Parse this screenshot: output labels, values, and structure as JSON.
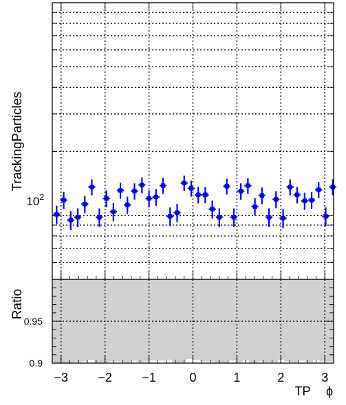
{
  "chart_data": [
    {
      "type": "scatter",
      "panel": "top",
      "ylabel": "TrackingParticles",
      "yscale": "log",
      "ylim": [
        50,
        1000
      ],
      "xlim": [
        -3.2,
        3.2
      ],
      "grid": true,
      "y_tick_label": "10^2",
      "y_tick_base": "10",
      "y_tick_exp": "2",
      "series": [
        {
          "color": "#0000ee",
          "x": [
            -3.1,
            -2.94,
            -2.78,
            -2.62,
            -2.46,
            -2.3,
            -2.13,
            -1.97,
            -1.81,
            -1.65,
            -1.49,
            -1.33,
            -1.16,
            -1.0,
            -0.84,
            -0.68,
            -0.52,
            -0.36,
            -0.2,
            -0.04,
            0.12,
            0.28,
            0.44,
            0.6,
            0.77,
            0.93,
            1.09,
            1.25,
            1.41,
            1.57,
            1.73,
            1.89,
            2.05,
            2.21,
            2.37,
            2.54,
            2.7,
            2.86,
            3.02,
            3.18
          ],
          "y": [
            101,
            118,
            95,
            98,
            113,
            136,
            98,
            120,
            104,
            131,
            112,
            130,
            139,
            120,
            122,
            138,
            99,
            103,
            142,
            134,
            125,
            125,
            107,
            98,
            137,
            98,
            130,
            138,
            110,
            124,
            98,
            119,
            97,
            136,
            125,
            117,
            118,
            132,
            99,
            136
          ]
        }
      ]
    },
    {
      "type": "bar",
      "panel": "bottom",
      "ylabel": "Ratio",
      "xlabel_main": "TP",
      "xlabel_symbol": "ϕ",
      "ylim": [
        0.9,
        1.0
      ],
      "xlim": [
        -3.2,
        3.2
      ],
      "grid": true,
      "band_color": "#d0d0d0",
      "y_ticks": [
        {
          "value": 0.95,
          "label": "0.95"
        },
        {
          "value": 0.9,
          "label": "0.9"
        }
      ],
      "x_ticks": [
        {
          "value": -3,
          "label": "−3"
        },
        {
          "value": -2,
          "label": "−2"
        },
        {
          "value": -1,
          "label": "−1"
        },
        {
          "value": 0,
          "label": "0"
        },
        {
          "value": 1,
          "label": "1"
        },
        {
          "value": 2,
          "label": "2"
        },
        {
          "value": 3,
          "label": "3"
        }
      ],
      "values": [
        0.9,
        0.9,
        0.9,
        0.901,
        0.902,
        0.904,
        0.9,
        0.901,
        0.902,
        0.902,
        0.901,
        0.903,
        0.901,
        0.902,
        0.903,
        0.903,
        0.904,
        0.9,
        0.901,
        0.905,
        0.904,
        0.902,
        0.902,
        0.9,
        0.9,
        0.903,
        0.901,
        0.903,
        0.9,
        0.902,
        0.901,
        0.901,
        0.904,
        0.902,
        0.901,
        0.903,
        0.901,
        0.904,
        0.902,
        0.902
      ]
    }
  ]
}
